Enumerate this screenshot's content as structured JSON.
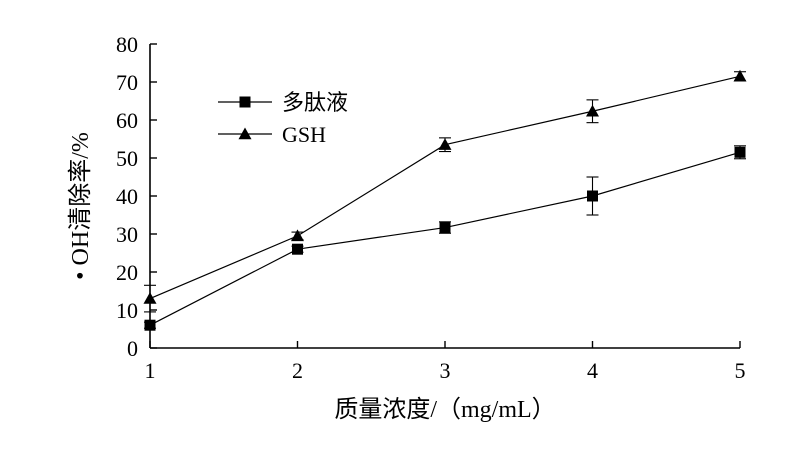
{
  "chart_data": {
    "type": "line",
    "title": "",
    "xlabel": "质量浓度/（mg/mL）",
    "ylabel": "• OH清除率/%",
    "x": [
      1,
      2,
      3,
      4,
      5
    ],
    "x_ticks": [
      "1",
      "2",
      "3",
      "4",
      "5"
    ],
    "y_ticks": [
      "0",
      "10",
      "20",
      "30",
      "40",
      "50",
      "60",
      "70",
      "80"
    ],
    "xlim": [
      1,
      5
    ],
    "ylim": [
      0,
      80
    ],
    "grid": false,
    "legend_position": "top-left",
    "series": [
      {
        "name": "多肽液",
        "marker": "square",
        "values": [
          6.0,
          26.0,
          31.7,
          40.0,
          51.5
        ],
        "errors": [
          0.8,
          0.8,
          1.5,
          5.0,
          1.7
        ]
      },
      {
        "name": "GSH",
        "marker": "triangle",
        "values": [
          13.0,
          29.5,
          53.5,
          62.3,
          71.5
        ],
        "errors": [
          3.5,
          1.0,
          1.8,
          3.0,
          1.2
        ]
      }
    ]
  }
}
